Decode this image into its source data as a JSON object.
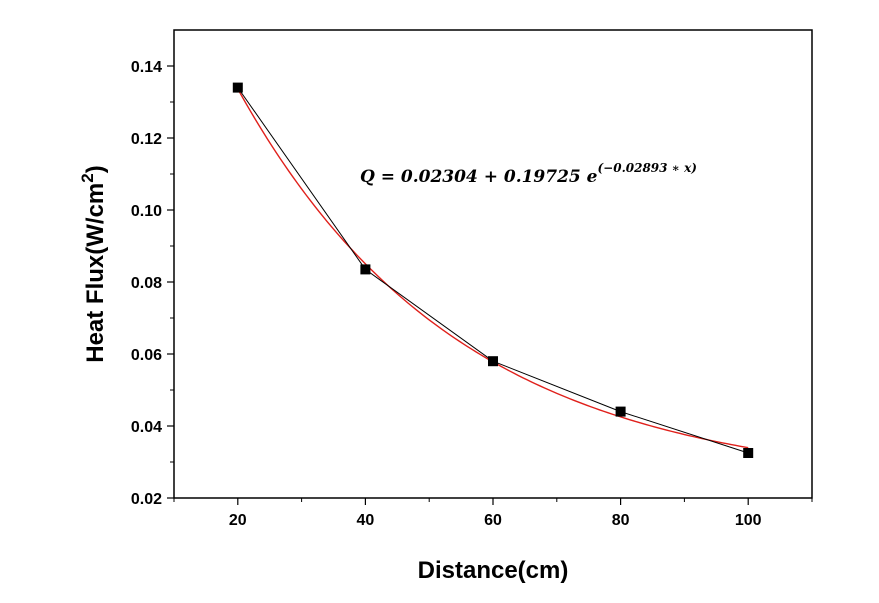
{
  "chart_data": {
    "type": "scatter",
    "title": "",
    "xlabel": "Distance(cm)",
    "ylabel_main": "Heat Flux(W/cm",
    "ylabel_sup": "2",
    "ylabel_close": ")",
    "xlim": [
      10,
      110
    ],
    "ylim": [
      0.02,
      0.15
    ],
    "x_ticks": [
      20,
      40,
      60,
      80,
      100
    ],
    "x_tick_labels": [
      "20",
      "40",
      "60",
      "80",
      "100"
    ],
    "y_ticks": [
      0.02,
      0.04,
      0.06,
      0.08,
      0.1,
      0.12,
      0.14
    ],
    "y_tick_labels": [
      "0.02",
      "0.04",
      "0.06",
      "0.08",
      "0.10",
      "0.12",
      "0.14"
    ],
    "series": [
      {
        "style": "markers-with-connecting-line",
        "color": "#000000",
        "x": [
          20,
          40,
          60,
          80,
          100
        ],
        "y": [
          0.134,
          0.0835,
          0.058,
          0.044,
          0.0325
        ]
      },
      {
        "style": "fit-curve",
        "color": "#e0201b",
        "model": "exponential",
        "params": {
          "y0": 0.02304,
          "A": 0.19725,
          "k": -0.02893
        },
        "x_range": [
          20,
          100
        ]
      }
    ],
    "annotation": {
      "main": "Q = 0.02304 + 0.19725 e",
      "superscript": "(−0.02893 ∗ x)"
    },
    "grid": false,
    "legend": "none"
  }
}
